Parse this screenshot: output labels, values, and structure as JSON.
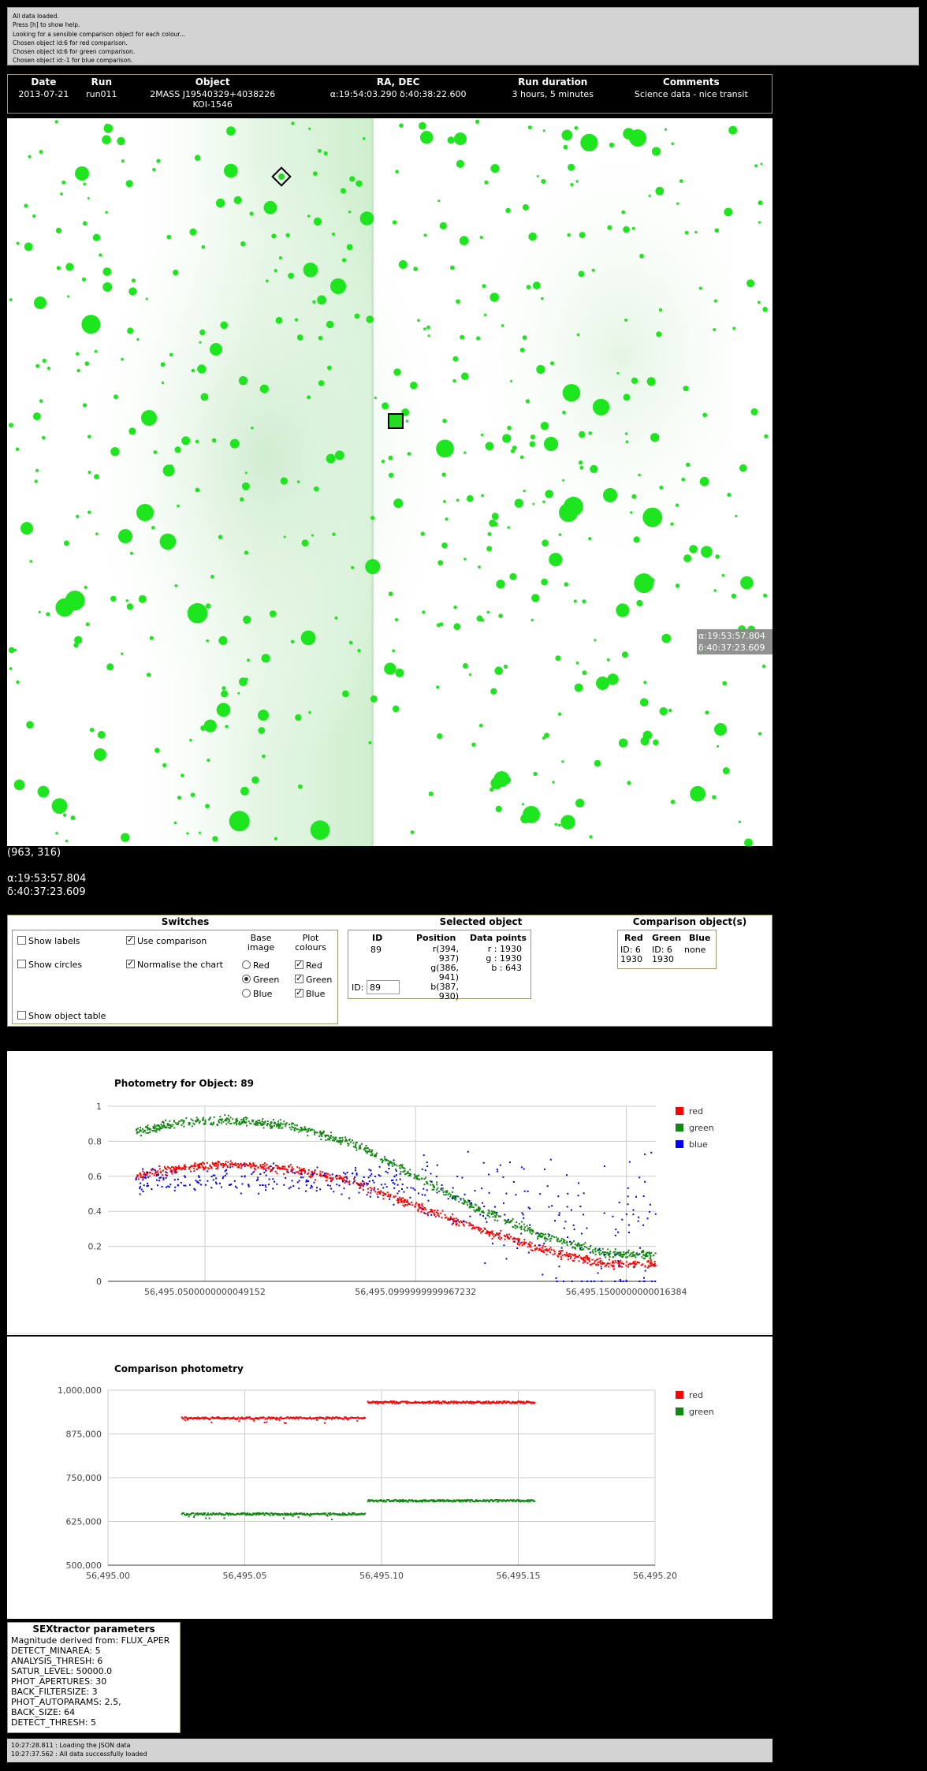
{
  "log_lines": [
    "All data loaded.",
    "Press [h] to show help.",
    "Looking for a sensible comparison object for each colour...",
    "Chosen object id:6 for red comparison.",
    "Chosen object id:6 for green comparison.",
    "Chosen object id:-1 for blue comparison."
  ],
  "info": {
    "headers": [
      "Date",
      "Run",
      "Object",
      "RA, DEC",
      "Run duration",
      "Comments"
    ],
    "date": "2013-07-21",
    "run": "run011",
    "object_line1": "2MASS J19540329+4038226",
    "object_line2": "KOI-1546",
    "radec": "α:19:54:03.290 δ:40:38:22.600",
    "duration": "3 hours, 5 minutes",
    "comments": "Science data - nice transit"
  },
  "image": {
    "hover_label_line1": "α:19:53:57.804",
    "hover_label_line2": "δ:40:37:23.609",
    "pixel_coords": "(963, 316)",
    "ra_readout": "α:19:53:57.804",
    "dec_readout": "δ:40:37:23.609",
    "star_color": "#1ee61e"
  },
  "switches": {
    "title": "Switches",
    "show_labels": "Show labels",
    "show_circles": "Show circles",
    "use_comparison": "Use comparison",
    "normalise": "Normalise the chart",
    "show_object_table": "Show object table",
    "base_image_title1": "Base",
    "base_image_title2": "image",
    "plot_colours_title1": "Plot",
    "plot_colours_title2": "colours",
    "red": "Red",
    "green": "Green",
    "blue": "Blue"
  },
  "selected": {
    "title": "Selected object",
    "col_id": "ID",
    "col_position": "Position",
    "col_datapoints": "Data points",
    "id": "89",
    "pos_r": "r(394, 937)",
    "pos_g": "g(386, 941)",
    "pos_b": "b(387, 930)",
    "dp_r": "r : 1930",
    "dp_g": "g : 1930",
    "dp_b": "b : 643",
    "id_label": "ID:",
    "id_input": "89"
  },
  "comparison": {
    "title": "Comparison object(s)",
    "headers": [
      "Red",
      "Green",
      "Blue"
    ],
    "row1": [
      "ID: 6",
      "ID: 6",
      "none"
    ],
    "row2": [
      "1930",
      "1930",
      ""
    ]
  },
  "sextractor": {
    "title": "SEXtractor parameters",
    "lines": [
      "Magnitude derived from: FLUX_APER",
      "DETECT_MINAREA: 5",
      "ANALYSIS_THRESH: 6",
      "SATUR_LEVEL: 50000.0",
      "PHOT_APERTURES: 30",
      "BACK_FILTERSIZE: 3",
      "PHOT_AUTOPARAMS: 2.5,",
      "BACK_SIZE: 64",
      "DETECT_THRESH: 5"
    ]
  },
  "status_lines": [
    "10:27:28.811 : Loading the JSON data",
    "10:27:37.562 : All data successfully loaded"
  ],
  "colors": {
    "red": "#ff0000",
    "green": "#118811",
    "blue": "#0000ff"
  },
  "chart_data": [
    {
      "type": "scatter",
      "title": "Photometry for Object: 89",
      "xlabel": "",
      "ylabel": "",
      "x_ticks": [
        "56,495.0500000000049152",
        "56,495.0999999999967232",
        "56,495.1500000000016384"
      ],
      "x_tick_values": [
        56495.05,
        56495.1,
        56495.15
      ],
      "xlim": [
        56495.027,
        56495.157
      ],
      "ylim": [
        0,
        1
      ],
      "y_ticks": [
        "0",
        "0.2",
        "0.4",
        "0.6",
        "0.8",
        "1"
      ],
      "grid": true,
      "legend": "right",
      "series": [
        {
          "name": "red",
          "points": [
            [
              56495.033,
              0.6
            ],
            [
              56495.045,
              0.65
            ],
            [
              56495.055,
              0.67
            ],
            [
              56495.07,
              0.64
            ],
            [
              56495.085,
              0.57
            ],
            [
              56495.1,
              0.43
            ],
            [
              56495.115,
              0.3
            ],
            [
              56495.13,
              0.18
            ],
            [
              56495.145,
              0.1
            ],
            [
              56495.157,
              0.1
            ]
          ]
        },
        {
          "name": "green",
          "points": [
            [
              56495.033,
              0.85
            ],
            [
              56495.045,
              0.91
            ],
            [
              56495.055,
              0.92
            ],
            [
              56495.07,
              0.89
            ],
            [
              56495.085,
              0.79
            ],
            [
              56495.1,
              0.6
            ],
            [
              56495.115,
              0.41
            ],
            [
              56495.13,
              0.26
            ],
            [
              56495.145,
              0.16
            ],
            [
              56495.157,
              0.15
            ]
          ]
        },
        {
          "name": "blue",
          "points": [
            [
              56495.033,
              0.58
            ],
            [
              56495.045,
              0.57
            ],
            [
              56495.055,
              0.58
            ],
            [
              56495.07,
              0.58
            ],
            [
              56495.085,
              0.58
            ],
            [
              56495.1,
              0.55
            ],
            [
              56495.115,
              0.45
            ],
            [
              56495.13,
              0.35
            ],
            [
              56495.145,
              0.27
            ],
            [
              56495.157,
              0.22
            ]
          ]
        }
      ]
    },
    {
      "type": "scatter",
      "title": "Comparison photometry",
      "xlabel": "",
      "ylabel": "",
      "x_ticks": [
        "56,495.00",
        "56,495.05",
        "56,495.10",
        "56,495.15",
        "56,495.20"
      ],
      "xlim": [
        56495.0,
        56495.2
      ],
      "ylim": [
        500000,
        1000000
      ],
      "y_ticks": [
        "500,000",
        "625,000",
        "750,000",
        "875,000",
        "1,000,000"
      ],
      "grid": true,
      "legend": "right",
      "series": [
        {
          "name": "red",
          "segments": [
            {
              "x_start": 56495.027,
              "x_end": 56495.094,
              "y": 920000
            },
            {
              "x_start": 56495.095,
              "x_end": 56495.156,
              "y": 965000
            }
          ]
        },
        {
          "name": "green",
          "segments": [
            {
              "x_start": 56495.027,
              "x_end": 56495.094,
              "y": 646000
            },
            {
              "x_start": 56495.095,
              "x_end": 56495.156,
              "y": 684000
            }
          ]
        }
      ]
    }
  ]
}
